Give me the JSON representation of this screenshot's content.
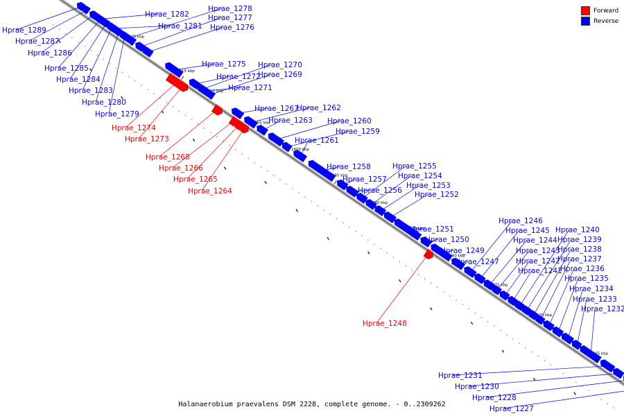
{
  "caption": "Halanaerobium praevalens DSM 2228, complete genome. - 0..2309262",
  "legend": [
    {
      "label": "Forward",
      "color": "#ff0000"
    },
    {
      "label": "Reverse",
      "color": "#0000ff"
    }
  ],
  "colors": {
    "forward": "#ff0000",
    "reverse": "#0000ff",
    "backbone": "#777777"
  },
  "ticks": [
    "1420 kbp",
    "1415 kbp",
    "1410 kbp",
    "1405 kbp",
    "1400 kbp",
    "1395 kbp",
    "1390 kbp",
    "1385 kbp",
    "1380 kbp",
    "1375 kbp",
    "1370 kbp",
    "1365 kbp"
  ],
  "genes": [
    {
      "name": "Hprae_1289",
      "strand": "reverse"
    },
    {
      "name": "Hprae_1287",
      "strand": "reverse"
    },
    {
      "name": "Hprae_1286",
      "strand": "reverse"
    },
    {
      "name": "Hprae_1285",
      "strand": "reverse"
    },
    {
      "name": "Hprae_1284",
      "strand": "reverse"
    },
    {
      "name": "Hprae_1283",
      "strand": "reverse"
    },
    {
      "name": "Hprae_1280",
      "strand": "reverse"
    },
    {
      "name": "Hprae_1279",
      "strand": "reverse"
    },
    {
      "name": "Hprae_1274",
      "strand": "forward"
    },
    {
      "name": "Hprae_1273",
      "strand": "forward"
    },
    {
      "name": "Hprae_1282",
      "strand": "reverse"
    },
    {
      "name": "Hprae_1281",
      "strand": "reverse"
    },
    {
      "name": "Hprae_1278",
      "strand": "reverse"
    },
    {
      "name": "Hprae_1277",
      "strand": "reverse"
    },
    {
      "name": "Hprae_1276",
      "strand": "reverse"
    },
    {
      "name": "Hprae_1275",
      "strand": "reverse"
    },
    {
      "name": "Hprae_1272",
      "strand": "reverse"
    },
    {
      "name": "Hprae_1271",
      "strand": "reverse"
    },
    {
      "name": "Hprae_1270",
      "strand": "reverse"
    },
    {
      "name": "Hprae_1269",
      "strand": "reverse"
    },
    {
      "name": "Hprae_1268",
      "strand": "forward"
    },
    {
      "name": "Hprae_1266",
      "strand": "forward"
    },
    {
      "name": "Hprae_1265",
      "strand": "forward"
    },
    {
      "name": "Hprae_1264",
      "strand": "forward"
    },
    {
      "name": "Hprae_1267",
      "strand": "reverse"
    },
    {
      "name": "Hprae_1262",
      "strand": "reverse"
    },
    {
      "name": "Hprae_1263",
      "strand": "reverse"
    },
    {
      "name": "Hprae_1260",
      "strand": "reverse"
    },
    {
      "name": "Hprae_1259",
      "strand": "reverse"
    },
    {
      "name": "Hprae_1261",
      "strand": "reverse"
    },
    {
      "name": "Hprae_1258",
      "strand": "reverse"
    },
    {
      "name": "Hprae_1257",
      "strand": "reverse"
    },
    {
      "name": "Hprae_1256",
      "strand": "reverse"
    },
    {
      "name": "Hprae_1255",
      "strand": "reverse"
    },
    {
      "name": "Hprae_1254",
      "strand": "reverse"
    },
    {
      "name": "Hprae_1253",
      "strand": "reverse"
    },
    {
      "name": "Hprae_1252",
      "strand": "reverse"
    },
    {
      "name": "Hprae_1251",
      "strand": "reverse"
    },
    {
      "name": "Hprae_1250",
      "strand": "reverse"
    },
    {
      "name": "Hprae_1249",
      "strand": "reverse"
    },
    {
      "name": "Hprae_1248",
      "strand": "forward"
    },
    {
      "name": "Hprae_1247",
      "strand": "reverse"
    },
    {
      "name": "Hprae_1246",
      "strand": "reverse"
    },
    {
      "name": "Hprae_1245",
      "strand": "reverse"
    },
    {
      "name": "Hprae_1244",
      "strand": "reverse"
    },
    {
      "name": "Hprae_1243",
      "strand": "reverse"
    },
    {
      "name": "Hprae_1242",
      "strand": "reverse"
    },
    {
      "name": "Hprae_1241",
      "strand": "reverse"
    },
    {
      "name": "Hprae_1240",
      "strand": "reverse"
    },
    {
      "name": "Hprae_1239",
      "strand": "reverse"
    },
    {
      "name": "Hprae_1238",
      "strand": "reverse"
    },
    {
      "name": "Hprae_1237",
      "strand": "reverse"
    },
    {
      "name": "Hprae_1236",
      "strand": "reverse"
    },
    {
      "name": "Hprae_1235",
      "strand": "reverse"
    },
    {
      "name": "Hprae_1234",
      "strand": "reverse"
    },
    {
      "name": "Hprae_1233",
      "strand": "reverse"
    },
    {
      "name": "Hprae_1232",
      "strand": "reverse"
    },
    {
      "name": "Hprae_1231",
      "strand": "reverse"
    },
    {
      "name": "Hprae_1230",
      "strand": "reverse"
    },
    {
      "name": "Hprae_1228",
      "strand": "reverse"
    },
    {
      "name": "Hprae_1227",
      "strand": "reverse"
    }
  ]
}
